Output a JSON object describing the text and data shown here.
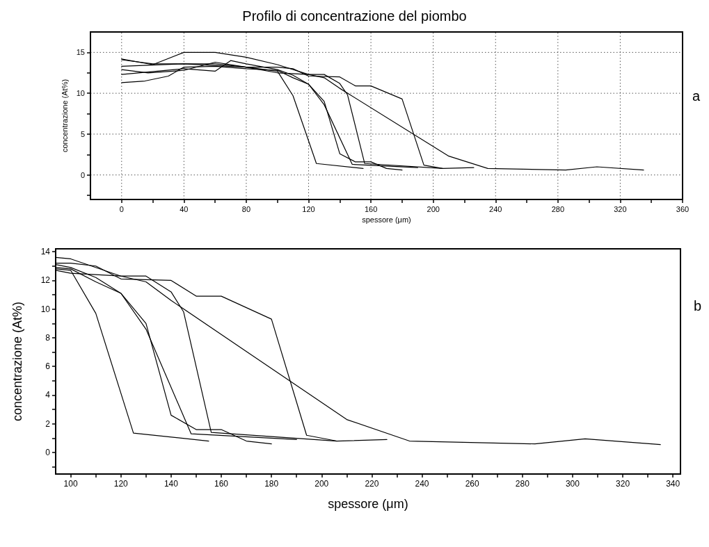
{
  "chart_data": [
    {
      "type": "line",
      "title": "Profilo di concentrazione del piombo",
      "xlabel": "spessore (μm)",
      "ylabel": "concentrazione (At%)",
      "annotations": [
        "a"
      ],
      "xlim": [
        -20,
        360
      ],
      "ylim": [
        -3,
        17.5
      ],
      "xticks": [
        0,
        {
          "value": 20,
          "label": null
        },
        40,
        {
          "value": 60,
          "label": null
        },
        80,
        {
          "value": 100,
          "label": null
        },
        120,
        {
          "value": 140,
          "label": null
        },
        160,
        {
          "value": 180,
          "label": null
        },
        200,
        {
          "value": 220,
          "label": null
        },
        240,
        {
          "value": 260,
          "label": null
        },
        280,
        {
          "value": 300,
          "label": null
        },
        320,
        {
          "value": 340,
          "label": null
        },
        360
      ],
      "yticks": [
        {
          "value": -2.5,
          "label": null
        },
        0,
        {
          "value": 2.5,
          "label": null
        },
        5,
        {
          "value": 7.5,
          "label": null
        },
        10,
        {
          "value": 12.5,
          "label": null
        },
        15
      ],
      "grid": true,
      "marker": "none",
      "line_style": "solid",
      "series": [
        {
          "color": "#000000",
          "x": [
            0,
            17,
            40,
            60,
            80,
            100,
            110,
            125,
            155
          ],
          "values": [
            12.9,
            12.5,
            12.8,
            13.8,
            13.2,
            12.7,
            9.7,
            1.4,
            0.8
          ]
        },
        {
          "color": "#000000",
          "x": [
            0,
            15,
            30,
            40,
            60,
            80,
            100,
            110,
            120,
            130,
            140,
            150,
            160,
            170,
            180
          ],
          "values": [
            11.3,
            11.5,
            12.1,
            13.2,
            13.3,
            13.0,
            12.8,
            11.9,
            11.1,
            9.0,
            2.6,
            1.6,
            1.6,
            0.8,
            0.6
          ]
        },
        {
          "color": "#000000",
          "x": [
            0,
            40,
            60,
            70,
            80,
            100,
            110,
            120,
            130,
            148,
            190
          ],
          "values": [
            12.3,
            13.0,
            12.7,
            14.0,
            13.6,
            12.9,
            12.2,
            11.1,
            8.6,
            1.3,
            0.9
          ]
        },
        {
          "color": "#000000",
          "x": [
            0,
            40,
            80,
            100,
            120,
            130,
            140,
            145,
            156,
            206
          ],
          "values": [
            13.3,
            13.6,
            13.2,
            12.5,
            12.3,
            12.3,
            11.2,
            9.8,
            1.4,
            0.8
          ]
        },
        {
          "color": "#000000",
          "x": [
            0,
            20,
            40,
            60,
            80,
            100,
            110,
            120,
            140,
            150,
            160,
            180,
            194,
            206,
            226
          ],
          "values": [
            14.1,
            13.6,
            13.6,
            13.6,
            13.2,
            13.2,
            13.0,
            12.1,
            12.0,
            10.9,
            10.9,
            9.3,
            1.2,
            0.8,
            0.9
          ]
        },
        {
          "color": "#000000",
          "x": [
            0,
            20,
            40,
            60,
            80,
            100,
            120,
            130,
            140,
            210,
            235,
            285,
            305,
            335
          ],
          "values": [
            14.2,
            13.5,
            15.0,
            15.0,
            14.4,
            13.5,
            12.3,
            11.9,
            10.6,
            2.3,
            0.8,
            0.6,
            1.0,
            0.6
          ]
        }
      ]
    },
    {
      "type": "line",
      "xlabel": "spessore (μm)",
      "ylabel": "concentrazione (At%)",
      "annotations": [
        "b"
      ],
      "xlim": [
        94,
        343
      ],
      "ylim": [
        -1.5,
        14.2
      ],
      "xticks": [
        100,
        {
          "value": 110,
          "label": null
        },
        120,
        {
          "value": 130,
          "label": null
        },
        140,
        {
          "value": 150,
          "label": null
        },
        160,
        {
          "value": 170,
          "label": null
        },
        180,
        {
          "value": 190,
          "label": null
        },
        200,
        {
          "value": 210,
          "label": null
        },
        220,
        {
          "value": 230,
          "label": null
        },
        240,
        {
          "value": 250,
          "label": null
        },
        260,
        {
          "value": 270,
          "label": null
        },
        280,
        {
          "value": 290,
          "label": null
        },
        300,
        {
          "value": 310,
          "label": null
        },
        320,
        {
          "value": 330,
          "label": null
        },
        340
      ],
      "yticks": [
        {
          "value": -1,
          "label": null
        },
        0,
        {
          "value": 1,
          "label": null
        },
        2,
        {
          "value": 3,
          "label": null
        },
        4,
        {
          "value": 5,
          "label": null
        },
        6,
        {
          "value": 7,
          "label": null
        },
        8,
        {
          "value": 9,
          "label": null
        },
        10,
        {
          "value": 11,
          "label": null
        },
        12,
        {
          "value": 13,
          "label": null
        },
        14
      ],
      "grid": false,
      "marker": "none",
      "line_style": "solid",
      "series": [
        {
          "color": "#000000",
          "x": [
            94,
            100,
            110,
            125,
            155
          ],
          "values": [
            12.8,
            12.7,
            9.7,
            1.35,
            0.8
          ]
        },
        {
          "color": "#000000",
          "x": [
            94,
            100,
            110,
            120,
            130,
            140,
            150,
            160,
            170,
            180
          ],
          "values": [
            12.9,
            12.8,
            11.9,
            11.1,
            9.0,
            2.6,
            1.6,
            1.6,
            0.8,
            0.6
          ]
        },
        {
          "color": "#000000",
          "x": [
            94,
            100,
            110,
            120,
            130,
            148,
            190
          ],
          "values": [
            13.1,
            12.9,
            12.2,
            11.1,
            8.6,
            1.3,
            0.9
          ]
        },
        {
          "color": "#000000",
          "x": [
            94,
            100,
            120,
            130,
            140,
            145,
            156,
            206
          ],
          "values": [
            12.7,
            12.5,
            12.3,
            12.3,
            11.2,
            9.8,
            1.4,
            0.8
          ]
        },
        {
          "color": "#000000",
          "x": [
            94,
            100,
            110,
            120,
            140,
            150,
            160,
            180,
            194,
            206,
            226
          ],
          "values": [
            13.2,
            13.2,
            13.0,
            12.1,
            12.0,
            10.9,
            10.9,
            9.3,
            1.2,
            0.8,
            0.9
          ]
        },
        {
          "color": "#000000",
          "x": [
            94,
            100,
            120,
            130,
            140,
            210,
            235,
            285,
            305,
            335
          ],
          "values": [
            13.6,
            13.5,
            12.3,
            11.9,
            10.6,
            2.3,
            0.8,
            0.6,
            0.95,
            0.55
          ]
        }
      ]
    }
  ]
}
